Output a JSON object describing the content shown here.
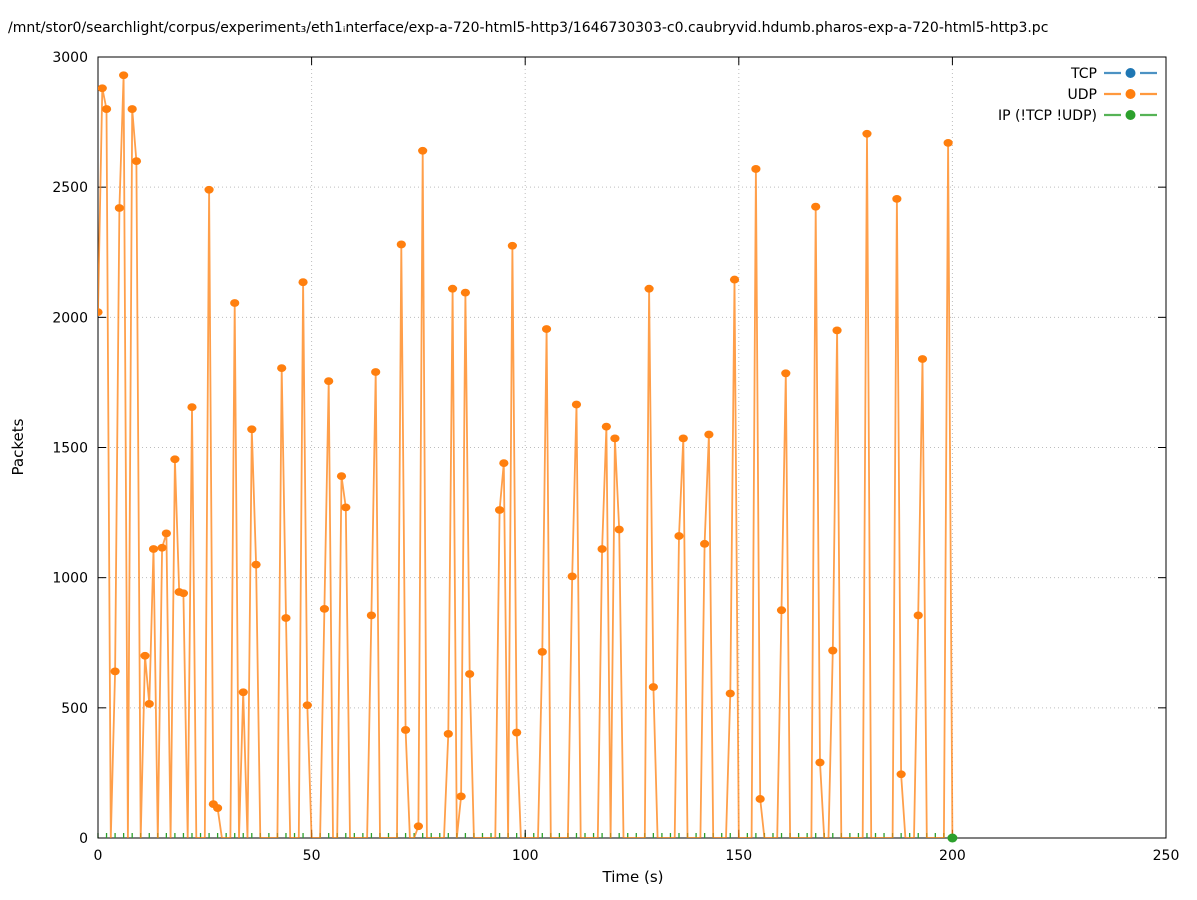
{
  "title": "/mnt/stor0/searchlight/corpus/experiment₃/eth1ᵢnterface/exp-a-720-html5-http3/1646730303-c0.caubryvid.hdumb.pharos-exp-a-720-html5-http3.pc",
  "legend": [
    {
      "label": "TCP",
      "color": "#1f77b4"
    },
    {
      "label": "UDP",
      "color": "#ff7f0e"
    },
    {
      "label": "IP (!TCP  !UDP)",
      "color": "#2ca02c"
    }
  ],
  "colors": {
    "tcp": "#1f77b4",
    "udp": "#ff7f0e",
    "ip": "#2ca02c",
    "grid": "#bdbdbd",
    "border": "#000000",
    "text": "#000000"
  },
  "chart_data": {
    "type": "line",
    "title": "/mnt/stor0/searchlight/corpus/experiment₃/eth1ᵢnterface/exp-a-720-html5-http3/1646730303-c0.caubryvid.hdumb.pharos-exp-a-720-html5-http3.pc",
    "xlabel": "Time (s)",
    "ylabel": "Packets",
    "xlim": [
      0,
      250
    ],
    "ylim": [
      0,
      3000
    ],
    "xticks": [
      0,
      50,
      100,
      150,
      200,
      250
    ],
    "yticks": [
      0,
      500,
      1000,
      1500,
      2000,
      2500,
      3000
    ],
    "grid": true,
    "grid_style": "dotted",
    "legend_position": "top-right-inside",
    "series": [
      {
        "name": "TCP",
        "color": "#1f77b4",
        "style": "lines-points",
        "points": []
      },
      {
        "name": "UDP",
        "color": "#ff7f0e",
        "style": "lines-points",
        "points": [
          [
            0,
            2020
          ],
          [
            1,
            2880
          ],
          [
            2,
            2800
          ],
          [
            3,
            0
          ],
          [
            4,
            640
          ],
          [
            5,
            2420
          ],
          [
            6,
            2930
          ],
          [
            7,
            0
          ],
          [
            8,
            2800
          ],
          [
            9,
            2600
          ],
          [
            10,
            0
          ],
          [
            11,
            700
          ],
          [
            12,
            515
          ],
          [
            13,
            1110
          ],
          [
            14,
            0
          ],
          [
            15,
            1115
          ],
          [
            16,
            1170
          ],
          [
            17,
            0
          ],
          [
            18,
            1455
          ],
          [
            19,
            945
          ],
          [
            20,
            940
          ],
          [
            21,
            0
          ],
          [
            22,
            1655
          ],
          [
            23,
            0
          ],
          [
            25,
            0
          ],
          [
            26,
            2490
          ],
          [
            27,
            130
          ],
          [
            28,
            115
          ],
          [
            29,
            0
          ],
          [
            31,
            0
          ],
          [
            32,
            2055
          ],
          [
            33,
            0
          ],
          [
            34,
            560
          ],
          [
            35,
            0
          ],
          [
            36,
            1570
          ],
          [
            37,
            1050
          ],
          [
            38,
            0
          ],
          [
            42,
            0
          ],
          [
            43,
            1805
          ],
          [
            44,
            845
          ],
          [
            45,
            0
          ],
          [
            47,
            0
          ],
          [
            48,
            2135
          ],
          [
            49,
            510
          ],
          [
            50,
            0
          ],
          [
            52,
            0
          ],
          [
            53,
            880
          ],
          [
            54,
            1755
          ],
          [
            55,
            0
          ],
          [
            56,
            0
          ],
          [
            57,
            1390
          ],
          [
            58,
            1270
          ],
          [
            59,
            0
          ],
          [
            63,
            0
          ],
          [
            64,
            855
          ],
          [
            65,
            1790
          ],
          [
            66,
            0
          ],
          [
            70,
            0
          ],
          [
            71,
            2280
          ],
          [
            72,
            415
          ],
          [
            73,
            0
          ],
          [
            74,
            0
          ],
          [
            75,
            45
          ],
          [
            76,
            2640
          ],
          [
            77,
            0
          ],
          [
            81,
            0
          ],
          [
            82,
            400
          ],
          [
            83,
            2110
          ],
          [
            84,
            0
          ],
          [
            85,
            160
          ],
          [
            86,
            2095
          ],
          [
            87,
            630
          ],
          [
            88,
            0
          ],
          [
            93,
            0
          ],
          [
            94,
            1260
          ],
          [
            95,
            1440
          ],
          [
            96,
            0
          ],
          [
            97,
            2275
          ],
          [
            98,
            405
          ],
          [
            99,
            0
          ],
          [
            103,
            0
          ],
          [
            104,
            715
          ],
          [
            105,
            1955
          ],
          [
            106,
            0
          ],
          [
            110,
            0
          ],
          [
            111,
            1005
          ],
          [
            112,
            1665
          ],
          [
            113,
            0
          ],
          [
            117,
            0
          ],
          [
            118,
            1110
          ],
          [
            119,
            1580
          ],
          [
            120,
            0
          ],
          [
            121,
            1535
          ],
          [
            122,
            1185
          ],
          [
            123,
            0
          ],
          [
            127,
            0
          ],
          [
            128,
            0
          ],
          [
            129,
            2110
          ],
          [
            130,
            580
          ],
          [
            131,
            0
          ],
          [
            135,
            0
          ],
          [
            136,
            1160
          ],
          [
            137,
            1535
          ],
          [
            138,
            0
          ],
          [
            141,
            0
          ],
          [
            142,
            1130
          ],
          [
            143,
            1550
          ],
          [
            144,
            0
          ],
          [
            147,
            0
          ],
          [
            148,
            555
          ],
          [
            149,
            2145
          ],
          [
            150,
            0
          ],
          [
            152,
            0
          ],
          [
            153,
            0
          ],
          [
            154,
            2570
          ],
          [
            155,
            150
          ],
          [
            156,
            0
          ],
          [
            159,
            0
          ],
          [
            160,
            875
          ],
          [
            161,
            1785
          ],
          [
            162,
            0
          ],
          [
            166,
            0
          ],
          [
            167,
            0
          ],
          [
            168,
            2425
          ],
          [
            169,
            290
          ],
          [
            170,
            0
          ],
          [
            171,
            0
          ],
          [
            172,
            720
          ],
          [
            173,
            1950
          ],
          [
            174,
            0
          ],
          [
            179,
            0
          ],
          [
            180,
            2705
          ],
          [
            181,
            0
          ],
          [
            185,
            0
          ],
          [
            186,
            0
          ],
          [
            187,
            2455
          ],
          [
            188,
            245
          ],
          [
            189,
            0
          ],
          [
            191,
            0
          ],
          [
            192,
            855
          ],
          [
            193,
            1840
          ],
          [
            194,
            0
          ],
          [
            198,
            0
          ],
          [
            199,
            2670
          ],
          [
            200,
            0
          ]
        ]
      },
      {
        "name": "IP (!TCP  !UDP)",
        "color": "#2ca02c",
        "style": "lines-points",
        "points": [
          [
            200,
            0
          ]
        ],
        "zero_line_ticks": {
          "x_start": 0,
          "x_end": 198,
          "step": 2,
          "y": 0
        }
      }
    ]
  }
}
